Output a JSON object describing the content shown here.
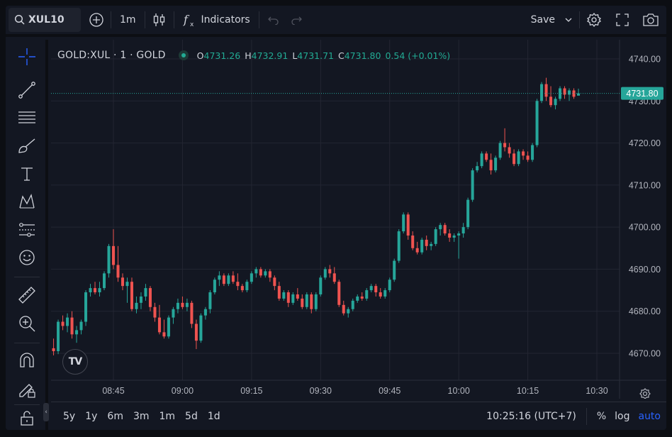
{
  "topbar": {
    "symbol": "XUL10",
    "interval": "1m",
    "indicators_label": "Indicators",
    "save_label": "Save"
  },
  "legend": {
    "title": "GOLD:XUL · 1 · GOLD",
    "o_key": "O",
    "o_val": "4731.26",
    "h_key": "H",
    "h_val": "4732.91",
    "l_key": "L",
    "l_val": "4731.71",
    "c_key": "C",
    "c_val": "4731.80",
    "change": "0.54 (+0.01%)"
  },
  "bottombar": {
    "ranges": [
      "5y",
      "1y",
      "6m",
      "3m",
      "1m",
      "5d",
      "1d"
    ],
    "clock": "10:25:16 (UTC+7)",
    "percent_label": "%",
    "log_label": "log",
    "auto_label": "auto"
  },
  "colors": {
    "up": "#26a69a",
    "down": "#ef5350",
    "accent": "#2962ff",
    "bg": "#131722",
    "grid": "#232632"
  },
  "icons": [
    "search-icon",
    "plus-circle-icon",
    "candles-icon",
    "fx-icon",
    "undo-icon",
    "redo-icon",
    "chevron-down-icon",
    "gear-icon",
    "fullscreen-icon",
    "camera-icon",
    "crosshair-icon",
    "trendline-icon",
    "fib-icon",
    "brush-icon",
    "text-icon",
    "pattern-icon",
    "forecast-icon",
    "emoji-icon",
    "ruler-icon",
    "zoom-icon",
    "magnet-icon",
    "lock-pencil-icon",
    "unlock-icon"
  ],
  "chart_data": {
    "type": "candlestick",
    "symbol": "GOLD:XUL",
    "interval": "1m",
    "last_price": "4731.80",
    "y_ticks": [
      "4740.00",
      "4730.00",
      "4720.00",
      "4710.00",
      "4700.00",
      "4690.00",
      "4680.00",
      "4670.00"
    ],
    "y_tick_values": [
      4740,
      4730,
      4720,
      4710,
      4700,
      4690,
      4680,
      4670
    ],
    "x_ticks": [
      "08:45",
      "09:00",
      "09:15",
      "09:30",
      "09:45",
      "10:00",
      "10:15",
      "10:30"
    ],
    "x_tick_minutes": [
      525,
      540,
      555,
      570,
      585,
      600,
      615,
      630
    ],
    "start_minute": 512,
    "ohlc": [
      [
        4671.2,
        4673.5,
        4669.5,
        4670.5
      ],
      [
        4670.5,
        4678.0,
        4669.8,
        4677.5
      ],
      [
        4677.5,
        4679.0,
        4675.5,
        4676.5
      ],
      [
        4676.5,
        4679.5,
        4675.0,
        4678.5
      ],
      [
        4678.5,
        4680.0,
        4673.5,
        4674.5
      ],
      [
        4674.5,
        4676.5,
        4672.5,
        4675.5
      ],
      [
        4675.5,
        4678.0,
        4674.5,
        4677.5
      ],
      [
        4677.5,
        4685.0,
        4676.5,
        4684.5
      ],
      [
        4684.5,
        4686.5,
        4683.5,
        4685.5
      ],
      [
        4685.5,
        4687.0,
        4684.0,
        4684.5
      ],
      [
        4684.5,
        4687.0,
        4683.5,
        4685.5
      ],
      [
        4685.5,
        4689.5,
        4685.0,
        4689.0
      ],
      [
        4689.0,
        4696.0,
        4688.0,
        4695.5
      ],
      [
        4695.5,
        4699.5,
        4690.0,
        4691.0
      ],
      [
        4691.0,
        4695.5,
        4687.0,
        4688.0
      ],
      [
        4688.0,
        4689.0,
        4685.0,
        4686.0
      ],
      [
        4686.0,
        4688.0,
        4682.0,
        4687.0
      ],
      [
        4687.0,
        4688.0,
        4680.0,
        4680.5
      ],
      [
        4680.5,
        4683.5,
        4679.5,
        4682.0
      ],
      [
        4682.0,
        4684.5,
        4680.5,
        4683.5
      ],
      [
        4683.5,
        4686.5,
        4682.5,
        4685.5
      ],
      [
        4685.5,
        4686.0,
        4680.0,
        4681.0
      ],
      [
        4681.0,
        4682.0,
        4677.5,
        4678.5
      ],
      [
        4678.5,
        4681.5,
        4674.5,
        4675.0
      ],
      [
        4675.0,
        4678.0,
        4673.5,
        4674.0
      ],
      [
        4674.0,
        4679.0,
        4673.5,
        4678.5
      ],
      [
        4678.5,
        4681.0,
        4677.0,
        4680.5
      ],
      [
        4680.5,
        4683.0,
        4679.5,
        4682.0
      ],
      [
        4682.0,
        4683.5,
        4680.5,
        4681.0
      ],
      [
        4681.0,
        4683.0,
        4680.0,
        4682.0
      ],
      [
        4682.0,
        4682.5,
        4676.0,
        4677.0
      ],
      [
        4677.0,
        4678.0,
        4671.0,
        4673.0
      ],
      [
        4673.0,
        4679.5,
        4672.5,
        4679.0
      ],
      [
        4679.0,
        4681.0,
        4678.0,
        4680.5
      ],
      [
        4680.5,
        4685.0,
        4679.5,
        4684.5
      ],
      [
        4684.5,
        4688.0,
        4684.0,
        4687.5
      ],
      [
        4687.5,
        4689.5,
        4686.0,
        4688.5
      ],
      [
        4688.5,
        4689.0,
        4686.0,
        4686.5
      ],
      [
        4686.5,
        4689.0,
        4686.0,
        4688.5
      ],
      [
        4688.5,
        4689.5,
        4686.5,
        4687.0
      ],
      [
        4687.0,
        4689.0,
        4685.0,
        4686.0
      ],
      [
        4686.0,
        4686.5,
        4684.5,
        4685.0
      ],
      [
        4685.0,
        4687.5,
        4684.5,
        4687.0
      ],
      [
        4687.0,
        4689.5,
        4686.5,
        4689.0
      ],
      [
        4689.0,
        4690.5,
        4688.0,
        4690.0
      ],
      [
        4690.0,
        4690.5,
        4688.0,
        4688.5
      ],
      [
        4688.5,
        4690.0,
        4688.0,
        4689.5
      ],
      [
        4689.5,
        4690.0,
        4687.0,
        4688.0
      ],
      [
        4688.0,
        4688.5,
        4685.0,
        4686.0
      ],
      [
        4686.0,
        4687.0,
        4682.5,
        4683.0
      ],
      [
        4683.0,
        4685.0,
        4682.5,
        4684.5
      ],
      [
        4684.5,
        4685.0,
        4681.0,
        4682.0
      ],
      [
        4682.0,
        4684.5,
        4681.5,
        4684.0
      ],
      [
        4684.0,
        4685.5,
        4682.5,
        4683.0
      ],
      [
        4683.0,
        4684.0,
        4680.5,
        4681.0
      ],
      [
        4681.0,
        4684.5,
        4680.5,
        4684.0
      ],
      [
        4684.0,
        4684.5,
        4679.5,
        4680.5
      ],
      [
        4680.5,
        4684.5,
        4680.0,
        4684.0
      ],
      [
        4684.0,
        4688.5,
        4683.5,
        4688.0
      ],
      [
        4688.0,
        4690.5,
        4687.5,
        4690.0
      ],
      [
        4690.0,
        4691.0,
        4688.0,
        4689.0
      ],
      [
        4689.0,
        4690.5,
        4686.5,
        4687.0
      ],
      [
        4687.0,
        4687.5,
        4681.0,
        4681.5
      ],
      [
        4681.5,
        4682.5,
        4679.0,
        4679.5
      ],
      [
        4679.5,
        4681.0,
        4678.5,
        4680.5
      ],
      [
        4680.5,
        4683.0,
        4680.0,
        4682.5
      ],
      [
        4682.5,
        4684.0,
        4682.0,
        4683.5
      ],
      [
        4683.5,
        4684.5,
        4682.5,
        4683.0
      ],
      [
        4683.0,
        4685.5,
        4682.5,
        4685.0
      ],
      [
        4685.0,
        4686.5,
        4684.5,
        4686.0
      ],
      [
        4686.0,
        4686.5,
        4683.5,
        4684.5
      ],
      [
        4684.5,
        4685.5,
        4683.0,
        4683.5
      ],
      [
        4683.5,
        4685.5,
        4683.0,
        4685.0
      ],
      [
        4685.0,
        4688.0,
        4684.5,
        4687.5
      ],
      [
        4687.5,
        4692.5,
        4687.0,
        4692.0
      ],
      [
        4692.0,
        4699.5,
        4691.5,
        4699.0
      ],
      [
        4699.0,
        4703.5,
        4698.5,
        4703.0
      ],
      [
        4703.0,
        4703.5,
        4697.0,
        4698.0
      ],
      [
        4698.0,
        4699.0,
        4694.5,
        4695.0
      ],
      [
        4695.0,
        4696.5,
        4693.5,
        4694.0
      ],
      [
        4694.0,
        4697.5,
        4693.5,
        4697.0
      ],
      [
        4697.0,
        4698.0,
        4694.5,
        4695.5
      ],
      [
        4695.5,
        4696.5,
        4694.5,
        4696.0
      ],
      [
        4696.0,
        4700.0,
        4695.5,
        4699.5
      ],
      [
        4699.5,
        4701.0,
        4698.0,
        4700.5
      ],
      [
        4700.5,
        4701.0,
        4698.0,
        4698.5
      ],
      [
        4698.5,
        4699.5,
        4696.5,
        4697.5
      ],
      [
        4697.5,
        4698.5,
        4696.5,
        4698.0
      ],
      [
        4698.0,
        4699.0,
        4692.5,
        4698.5
      ],
      [
        4698.5,
        4701.0,
        4697.5,
        4700.0
      ],
      [
        4700.0,
        4707.0,
        4699.5,
        4706.5
      ],
      [
        4706.5,
        4714.0,
        4706.0,
        4713.5
      ],
      [
        4713.5,
        4715.5,
        4713.0,
        4714.5
      ],
      [
        4714.5,
        4718.0,
        4714.0,
        4717.5
      ],
      [
        4717.5,
        4718.0,
        4715.5,
        4716.0
      ],
      [
        4716.0,
        4717.5,
        4712.5,
        4713.5
      ],
      [
        4713.5,
        4717.0,
        4713.0,
        4716.5
      ],
      [
        4716.5,
        4720.5,
        4716.0,
        4720.0
      ],
      [
        4720.0,
        4723.5,
        4718.0,
        4719.0
      ],
      [
        4719.0,
        4720.0,
        4716.5,
        4717.5
      ],
      [
        4717.5,
        4718.5,
        4714.5,
        4715.0
      ],
      [
        4715.0,
        4718.5,
        4714.5,
        4718.0
      ],
      [
        4718.0,
        4718.5,
        4716.0,
        4717.0
      ],
      [
        4717.0,
        4718.0,
        4715.5,
        4716.0
      ],
      [
        4716.0,
        4720.0,
        4715.5,
        4719.5
      ],
      [
        4719.5,
        4730.5,
        4719.0,
        4730.0
      ],
      [
        4730.0,
        4734.5,
        4729.5,
        4734.0
      ],
      [
        4734.0,
        4735.5,
        4730.0,
        4731.0
      ],
      [
        4731.0,
        4733.5,
        4728.5,
        4729.0
      ],
      [
        4729.0,
        4731.0,
        4728.0,
        4730.5
      ],
      [
        4730.5,
        4733.5,
        4730.0,
        4733.0
      ],
      [
        4733.0,
        4733.5,
        4730.5,
        4731.5
      ],
      [
        4731.5,
        4733.0,
        4730.0,
        4732.5
      ],
      [
        4732.5,
        4733.0,
        4730.5,
        4731.0
      ],
      [
        4731.26,
        4732.91,
        4731.71,
        4731.8
      ]
    ]
  }
}
